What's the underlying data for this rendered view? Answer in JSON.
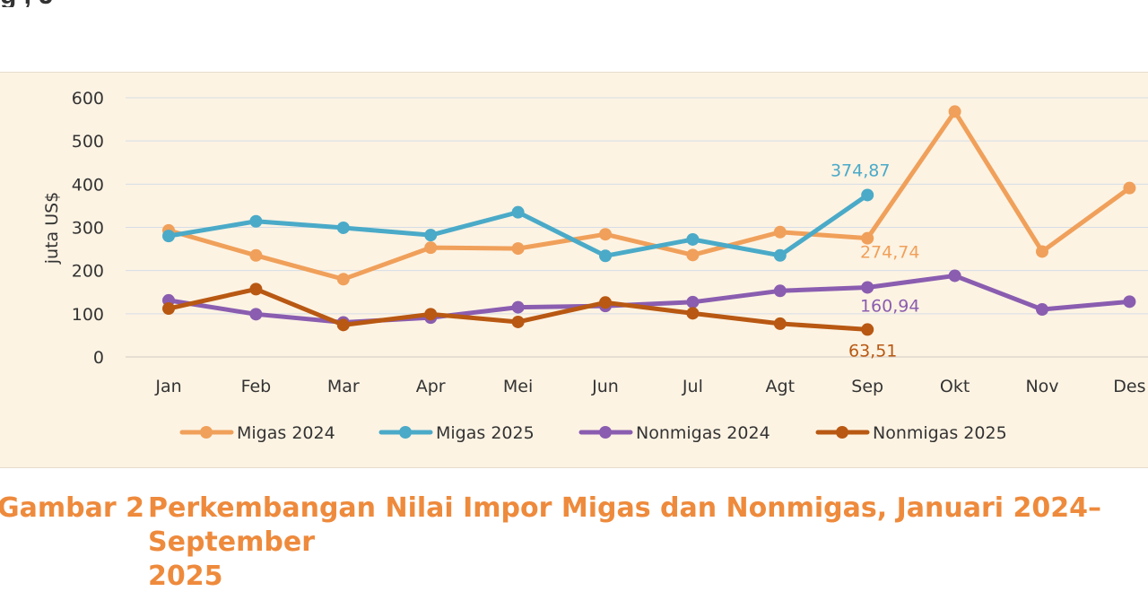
{
  "caption": {
    "number": "Gambar 2",
    "title_line1": "Perkembangan Nilai Impor Migas dan Nonmigas, Januari 2024–September",
    "title_line2": "2025"
  },
  "chart_data": {
    "type": "line",
    "title": "",
    "ylabel": "juta US$",
    "xlabel": "",
    "ylim": [
      0,
      600
    ],
    "yticks": [
      0,
      100,
      200,
      300,
      400,
      500,
      600
    ],
    "grid": true,
    "legend": "bottom",
    "categories": [
      "Jan",
      "Feb",
      "Mar",
      "Apr",
      "Mei",
      "Jun",
      "Jul",
      "Agt",
      "Sep",
      "Okt",
      "Nov",
      "Des"
    ],
    "series": [
      {
        "name": "Migas 2024",
        "color": "#f0a05a",
        "values": [
          293,
          235,
          180,
          253,
          251,
          284,
          236,
          289,
          274.74,
          568,
          244,
          391
        ]
      },
      {
        "name": "Migas 2025",
        "color": "#4aaac8",
        "values": [
          280,
          314,
          299,
          282,
          335,
          234,
          272,
          235,
          374.87,
          null,
          null,
          null
        ]
      },
      {
        "name": "Nonmigas 2024",
        "color": "#8a5db0",
        "values": [
          131,
          99,
          80,
          91,
          115,
          118,
          127,
          153,
          160.94,
          188,
          110,
          128
        ]
      },
      {
        "name": "Nonmigas 2025",
        "color": "#b85812",
        "values": [
          112,
          157,
          74,
          99,
          81,
          126,
          101,
          77,
          63.51,
          null,
          null,
          null
        ]
      }
    ],
    "annotations": [
      {
        "text": "374,87",
        "series": "Migas 2025",
        "category": "Sep",
        "color": "#4aaac8"
      },
      {
        "text": "274,74",
        "series": "Migas 2024",
        "category": "Sep",
        "color": "#f0a05a"
      },
      {
        "text": "160,94",
        "series": "Nonmigas 2024",
        "category": "Sep",
        "color": "#8a5db0"
      },
      {
        "text": "63,51",
        "series": "Nonmigas 2025",
        "category": "Sep",
        "color": "#b85812"
      }
    ]
  },
  "top_text_fragment": "g                              , J"
}
